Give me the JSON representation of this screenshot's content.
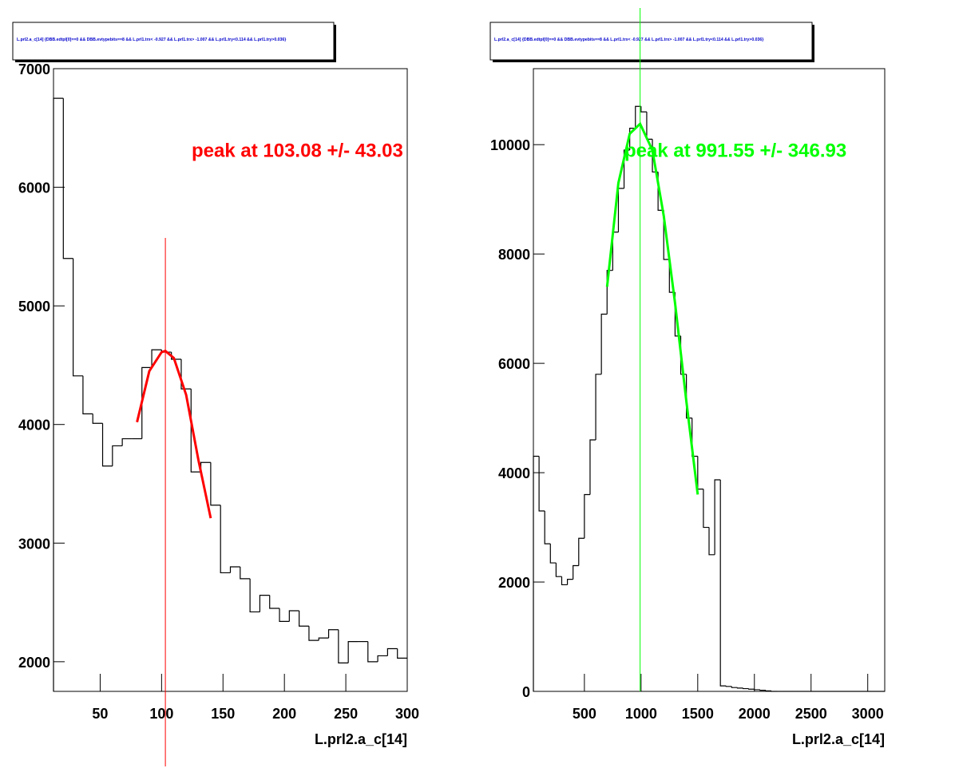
{
  "chart_data": [
    {
      "type": "histogram",
      "title": "L.prl2.a_c[14] {DBB.edtpl[0]==0 && DBB.evtypebits==8 &&  L.prl1.trx< -0.927 && L.prl1.trx> -1.007 && L.prl1.try<0.114 && L.prl1.try>0.036}",
      "xlabel": "L.prl2.a_c[14]",
      "bins": [
        12,
        20,
        28,
        36,
        44,
        52,
        60,
        68,
        76,
        84,
        92,
        100,
        108,
        116,
        124,
        132,
        140,
        148,
        156,
        164,
        172,
        180,
        188,
        196,
        204,
        212,
        220,
        228,
        236,
        244,
        252,
        260,
        268,
        276,
        284,
        292,
        300
      ],
      "values": [
        6750,
        5400,
        4410,
        4090,
        4010,
        3650,
        3820,
        3880,
        3880,
        4480,
        4630,
        4610,
        4550,
        4300,
        3600,
        3680,
        3320,
        2750,
        2800,
        2700,
        2420,
        2560,
        2450,
        2340,
        2430,
        2300,
        2180,
        2200,
        2270,
        1990,
        2170,
        2170,
        2000,
        2050,
        2110,
        2030
      ],
      "color": "#000000",
      "xlim": [
        12,
        300
      ],
      "ylim": [
        1750,
        7000
      ],
      "xticks": [
        50,
        100,
        150,
        200,
        250,
        300
      ],
      "yticks": [
        2000,
        3000,
        4000,
        5000,
        6000,
        7000
      ],
      "fit": {
        "x": [
          80,
          90,
          100,
          103.08,
          110,
          120,
          130,
          140
        ],
        "values": [
          4020,
          4450,
          4610,
          4620,
          4560,
          4250,
          3700,
          3210
        ],
        "color": "#ff0000"
      },
      "peak_x": 103.08,
      "annotation": "peak at 103.08 +/- 43.03"
    },
    {
      "type": "histogram",
      "title": "L.prl2.a_c[14] {DBB.edtpl[0]==0 && DBB.evtypebits==8 &&  L.prl1.trx< -0.927 && L.prl1.trx> -1.007 && L.prl1.try<0.114 && L.prl1.try>0.036}",
      "xlabel": "L.prl2.a_c[14]",
      "bins": [
        50,
        100,
        150,
        200,
        250,
        300,
        350,
        400,
        450,
        500,
        550,
        600,
        650,
        700,
        750,
        800,
        850,
        900,
        950,
        1000,
        1050,
        1100,
        1150,
        1200,
        1250,
        1300,
        1350,
        1400,
        1450,
        1500,
        1550,
        1600,
        1650,
        1700,
        1750,
        1800,
        1850,
        1900,
        1950,
        2000,
        2050,
        2100,
        2150,
        2200,
        2250,
        2300,
        2350,
        2400,
        2450,
        2500,
        2550,
        2600,
        2650,
        2700,
        2750,
        2800,
        2850,
        2900,
        2950,
        3000,
        3050,
        3100,
        3150
      ],
      "values": [
        4300,
        3300,
        2700,
        2350,
        2100,
        1950,
        2050,
        2300,
        2800,
        3600,
        4600,
        5800,
        6900,
        7700,
        8400,
        9200,
        9900,
        10300,
        10700,
        10600,
        10100,
        9500,
        8800,
        7900,
        7300,
        6500,
        5800,
        5000,
        4300,
        3700,
        3000,
        2500,
        3870,
        100,
        90,
        70,
        60,
        50,
        40,
        30,
        20,
        10,
        0,
        0,
        0,
        0,
        0,
        0,
        0,
        0,
        0,
        0,
        0,
        0,
        0,
        0,
        0,
        0,
        0,
        0,
        0,
        0
      ],
      "color": "#000000",
      "xlim": [
        50,
        3150
      ],
      "ylim": [
        0,
        11390
      ],
      "xticks": [
        500,
        1000,
        1500,
        2000,
        2500,
        3000
      ],
      "yticks": [
        0,
        2000,
        4000,
        6000,
        8000,
        10000
      ],
      "fit": {
        "x": [
          700,
          800,
          900,
          991.55,
          1100,
          1200,
          1300,
          1400,
          1500
        ],
        "values": [
          7400,
          9300,
          10200,
          10380,
          9900,
          8700,
          7100,
          5300,
          3600
        ],
        "color": "#00ff00"
      },
      "peak_x": 991.55,
      "annotation": "peak at 991.55 +/- 346.93"
    }
  ]
}
